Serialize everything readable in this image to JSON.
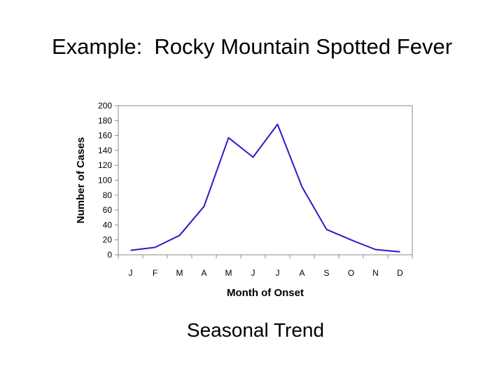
{
  "slide": {
    "title": "Example:  Rocky Mountain Spotted Fever",
    "caption": "Seasonal Trend"
  },
  "chart_data": {
    "type": "line",
    "title": "",
    "xlabel": "Month of Onset",
    "ylabel": "Number of Cases",
    "categories": [
      "J",
      "F",
      "M",
      "A",
      "M",
      "J",
      "J",
      "A",
      "S",
      "O",
      "N",
      "D"
    ],
    "series": [
      {
        "values": [
          6,
          10,
          26,
          65,
          157,
          131,
          175,
          91,
          34,
          20,
          7,
          4
        ],
        "color": "#3d10c8"
      }
    ],
    "ylim": [
      0,
      200
    ],
    "yticks": [
      0,
      20,
      40,
      60,
      80,
      100,
      120,
      140,
      160,
      180,
      200
    ],
    "grid": false,
    "legend": "none"
  }
}
